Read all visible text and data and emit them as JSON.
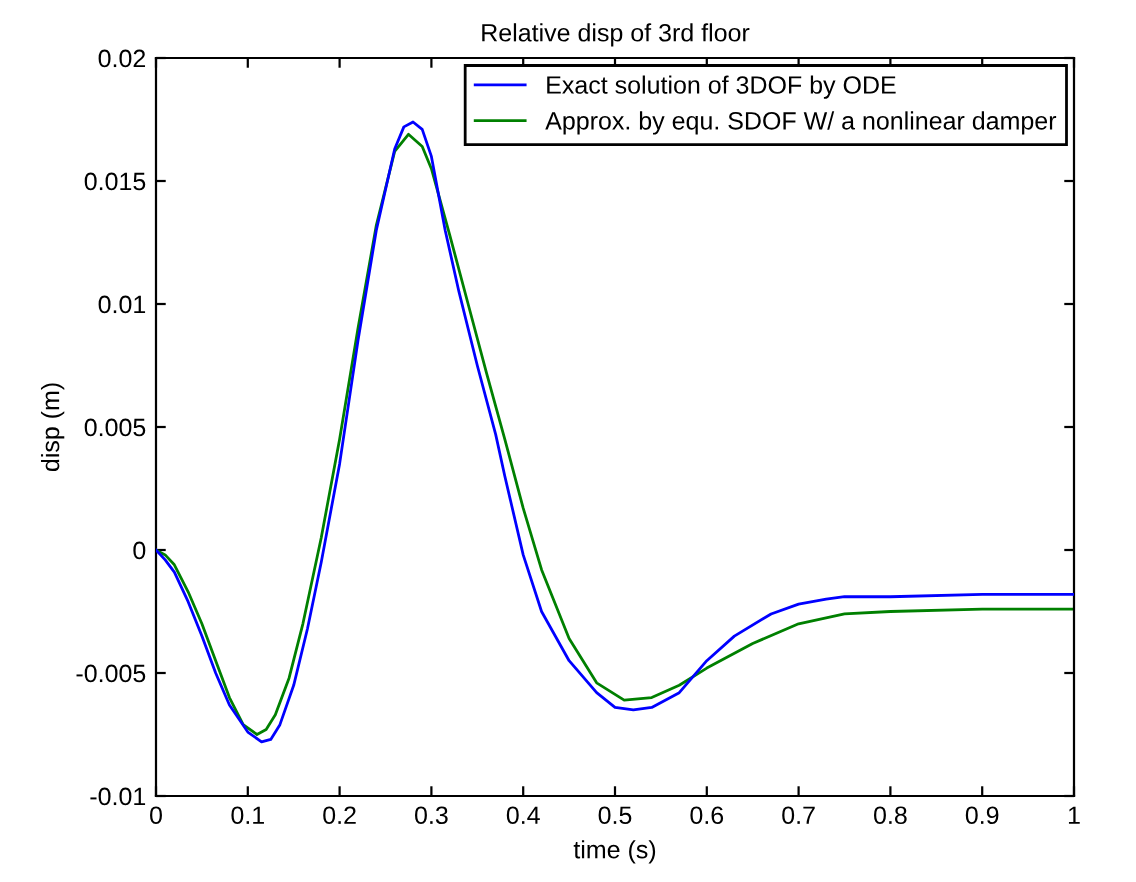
{
  "chart_data": {
    "type": "line",
    "title": "Relative disp of 3rd floor",
    "xlabel": "time (s)",
    "ylabel": "disp (m)",
    "xlim": [
      0,
      1
    ],
    "ylim": [
      -0.01,
      0.02
    ],
    "xticks": [
      0,
      0.1,
      0.2,
      0.3,
      0.4,
      0.5,
      0.6,
      0.7,
      0.8,
      0.9,
      1
    ],
    "yticks": [
      {
        "value": -0.01,
        "label": "-0.01"
      },
      {
        "value": -0.005,
        "label": "-0.005"
      },
      0,
      0.005,
      0.01,
      0.015,
      0.02
    ],
    "legend": "top right",
    "grid": false,
    "marker": "none",
    "line_style": "solid",
    "series": [
      {
        "name": "Exact solution of 3DOF by ODE",
        "color": "#0000ff",
        "x": [
          0,
          0.01,
          0.02,
          0.035,
          0.05,
          0.065,
          0.08,
          0.1,
          0.115,
          0.125,
          0.135,
          0.15,
          0.165,
          0.18,
          0.2,
          0.22,
          0.24,
          0.26,
          0.27,
          0.28,
          0.29,
          0.3,
          0.315,
          0.33,
          0.35,
          0.37,
          0.38,
          0.4,
          0.42,
          0.45,
          0.48,
          0.5,
          0.52,
          0.54,
          0.57,
          0.6,
          0.63,
          0.67,
          0.7,
          0.73,
          0.75,
          0.8,
          0.9,
          1
        ],
        "values": [
          0,
          -0.0004,
          -0.0009,
          -0.0021,
          -0.0035,
          -0.005,
          -0.0063,
          -0.0074,
          -0.0078,
          -0.0077,
          -0.0071,
          -0.0055,
          -0.0032,
          -0.0005,
          0.0035,
          0.0085,
          0.013,
          0.0163,
          0.0172,
          0.0174,
          0.0171,
          0.016,
          0.013,
          0.0105,
          0.0075,
          0.0047,
          0.003,
          -0.0002,
          -0.0025,
          -0.0045,
          -0.0058,
          -0.0064,
          -0.0065,
          -0.0064,
          -0.0058,
          -0.0045,
          -0.0035,
          -0.0026,
          -0.0022,
          -0.002,
          -0.0019,
          -0.0019,
          -0.0018,
          -0.0018
        ]
      },
      {
        "name": "Approx. by equ. SDOF W/ a nonlinear damper",
        "color": "#008000",
        "x": [
          0,
          0.01,
          0.02,
          0.035,
          0.05,
          0.065,
          0.08,
          0.095,
          0.11,
          0.12,
          0.13,
          0.145,
          0.16,
          0.18,
          0.2,
          0.22,
          0.24,
          0.26,
          0.275,
          0.29,
          0.3,
          0.32,
          0.34,
          0.36,
          0.38,
          0.4,
          0.42,
          0.45,
          0.48,
          0.51,
          0.54,
          0.57,
          0.6,
          0.65,
          0.7,
          0.75,
          0.8,
          0.9,
          1
        ],
        "values": [
          0,
          -0.0002,
          -0.0006,
          -0.0017,
          -0.003,
          -0.0045,
          -0.006,
          -0.0071,
          -0.0075,
          -0.0073,
          -0.0067,
          -0.0052,
          -0.003,
          0.0005,
          0.0045,
          0.009,
          0.0132,
          0.0162,
          0.0169,
          0.0164,
          0.0155,
          0.0128,
          0.01,
          0.0072,
          0.0045,
          0.0017,
          -0.0008,
          -0.0036,
          -0.0054,
          -0.0061,
          -0.006,
          -0.0055,
          -0.0048,
          -0.0038,
          -0.003,
          -0.0026,
          -0.0025,
          -0.0024,
          -0.0024
        ]
      }
    ]
  }
}
